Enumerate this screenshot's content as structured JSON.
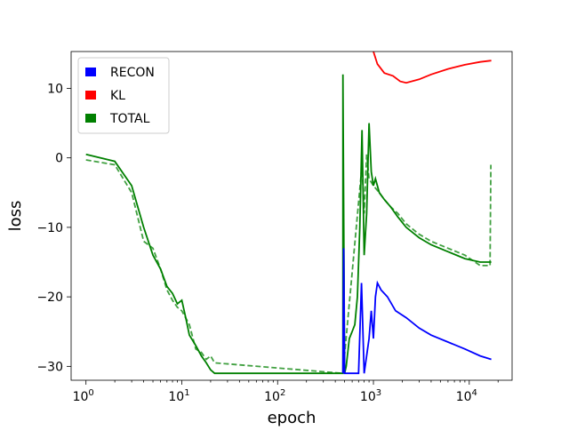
{
  "chart_data": {
    "type": "line",
    "title": "",
    "xlabel": "epoch",
    "ylabel": "loss",
    "xscale": "log",
    "xlim": [
      0.7,
      28000
    ],
    "ylim": [
      -32,
      15.3
    ],
    "x_ticks": [
      {
        "value": 1,
        "label_base": "10",
        "label_exp": "0"
      },
      {
        "value": 10,
        "label_base": "10",
        "label_exp": "1"
      },
      {
        "value": 100,
        "label_base": "10",
        "label_exp": "2"
      },
      {
        "value": 1000,
        "label_base": "10",
        "label_exp": "3"
      },
      {
        "value": 10000,
        "label_base": "10",
        "label_exp": "4"
      }
    ],
    "y_ticks": [
      {
        "value": 10,
        "label": "10"
      },
      {
        "value": 0,
        "label": "0"
      },
      {
        "value": -10,
        "label": "−10"
      },
      {
        "value": -20,
        "label": "−20"
      },
      {
        "value": -30,
        "label": "−30"
      }
    ],
    "grid": false,
    "legend_position": "top-left",
    "legend": [
      {
        "label": "RECON",
        "color": "#0000ff"
      },
      {
        "label": "KL",
        "color": "#ff0000"
      },
      {
        "label": "TOTAL",
        "color": "#008000"
      }
    ],
    "series": [
      {
        "name": "TOTAL",
        "color": "#008000",
        "style": "solid",
        "points": [
          [
            1,
            0.5
          ],
          [
            2,
            -0.5
          ],
          [
            3,
            -4
          ],
          [
            4,
            -10
          ],
          [
            5,
            -14
          ],
          [
            6,
            -16
          ],
          [
            7,
            -18.5
          ],
          [
            8,
            -19.5
          ],
          [
            9,
            -21
          ],
          [
            10,
            -20.5
          ],
          [
            11,
            -23
          ],
          [
            12,
            -25.5
          ],
          [
            14,
            -27
          ],
          [
            16,
            -28.5
          ],
          [
            18,
            -29.5
          ],
          [
            20,
            -30.5
          ],
          [
            22,
            -31
          ],
          [
            480,
            -31
          ],
          [
            480,
            12
          ],
          [
            500,
            -31
          ],
          [
            520,
            -30
          ],
          [
            560,
            -26
          ],
          [
            600,
            -25
          ],
          [
            640,
            -24
          ],
          [
            680,
            -20
          ],
          [
            720,
            -10
          ],
          [
            760,
            4
          ],
          [
            800,
            -14
          ],
          [
            850,
            -8
          ],
          [
            900,
            5
          ],
          [
            950,
            -2
          ],
          [
            1000,
            -4
          ],
          [
            1050,
            -3
          ],
          [
            1150,
            -5
          ],
          [
            1300,
            -6
          ],
          [
            1500,
            -7
          ],
          [
            1800,
            -8.5
          ],
          [
            2200,
            -10
          ],
          [
            3000,
            -11.5
          ],
          [
            4000,
            -12.5
          ],
          [
            6000,
            -13.5
          ],
          [
            9000,
            -14.5
          ],
          [
            13000,
            -15
          ],
          [
            17000,
            -15
          ]
        ]
      },
      {
        "name": "TOTAL",
        "color": "#008000",
        "style": "dashed",
        "points": [
          [
            1,
            -0.3
          ],
          [
            2,
            -1
          ],
          [
            3,
            -5
          ],
          [
            4,
            -12
          ],
          [
            5,
            -13
          ],
          [
            6,
            -16
          ],
          [
            7,
            -19
          ],
          [
            8,
            -20.5
          ],
          [
            9,
            -21.5
          ],
          [
            10,
            -22
          ],
          [
            12,
            -24
          ],
          [
            14,
            -27.5
          ],
          [
            16,
            -28
          ],
          [
            18,
            -29
          ],
          [
            20,
            -28.5
          ],
          [
            22,
            -29.5
          ],
          [
            480,
            -31
          ],
          [
            760,
            -1
          ],
          [
            800,
            -8
          ],
          [
            850,
            0.5
          ],
          [
            900,
            -3
          ],
          [
            1000,
            -4
          ],
          [
            1150,
            -5
          ],
          [
            1300,
            -6
          ],
          [
            1500,
            -7
          ],
          [
            1800,
            -8
          ],
          [
            2200,
            -9.5
          ],
          [
            3000,
            -11
          ],
          [
            4000,
            -12
          ],
          [
            6000,
            -13
          ],
          [
            9000,
            -14
          ],
          [
            13000,
            -15.5
          ],
          [
            16500,
            -15.5
          ],
          [
            16800,
            -1
          ]
        ]
      },
      {
        "name": "RECON",
        "color": "#0000ff",
        "style": "solid",
        "points": [
          [
            480,
            -31
          ],
          [
            490,
            -13
          ],
          [
            500,
            -31
          ],
          [
            700,
            -31
          ],
          [
            750,
            -18
          ],
          [
            800,
            -31
          ],
          [
            900,
            -26
          ],
          [
            950,
            -22
          ],
          [
            1000,
            -26
          ],
          [
            1050,
            -20
          ],
          [
            1100,
            -18
          ],
          [
            1200,
            -19
          ],
          [
            1400,
            -20
          ],
          [
            1700,
            -22
          ],
          [
            2200,
            -23
          ],
          [
            3000,
            -24.5
          ],
          [
            4000,
            -25.5
          ],
          [
            6000,
            -26.5
          ],
          [
            9000,
            -27.5
          ],
          [
            13000,
            -28.5
          ],
          [
            17000,
            -29
          ]
        ]
      },
      {
        "name": "KL",
        "color": "#ff0000",
        "style": "solid",
        "points": [
          [
            1000,
            15.3
          ],
          [
            1100,
            13.5
          ],
          [
            1300,
            12.2
          ],
          [
            1600,
            11.8
          ],
          [
            1900,
            11
          ],
          [
            2200,
            10.8
          ],
          [
            3000,
            11.3
          ],
          [
            4000,
            12
          ],
          [
            6000,
            12.8
          ],
          [
            9000,
            13.4
          ],
          [
            13000,
            13.8
          ],
          [
            17000,
            14
          ]
        ]
      }
    ]
  }
}
